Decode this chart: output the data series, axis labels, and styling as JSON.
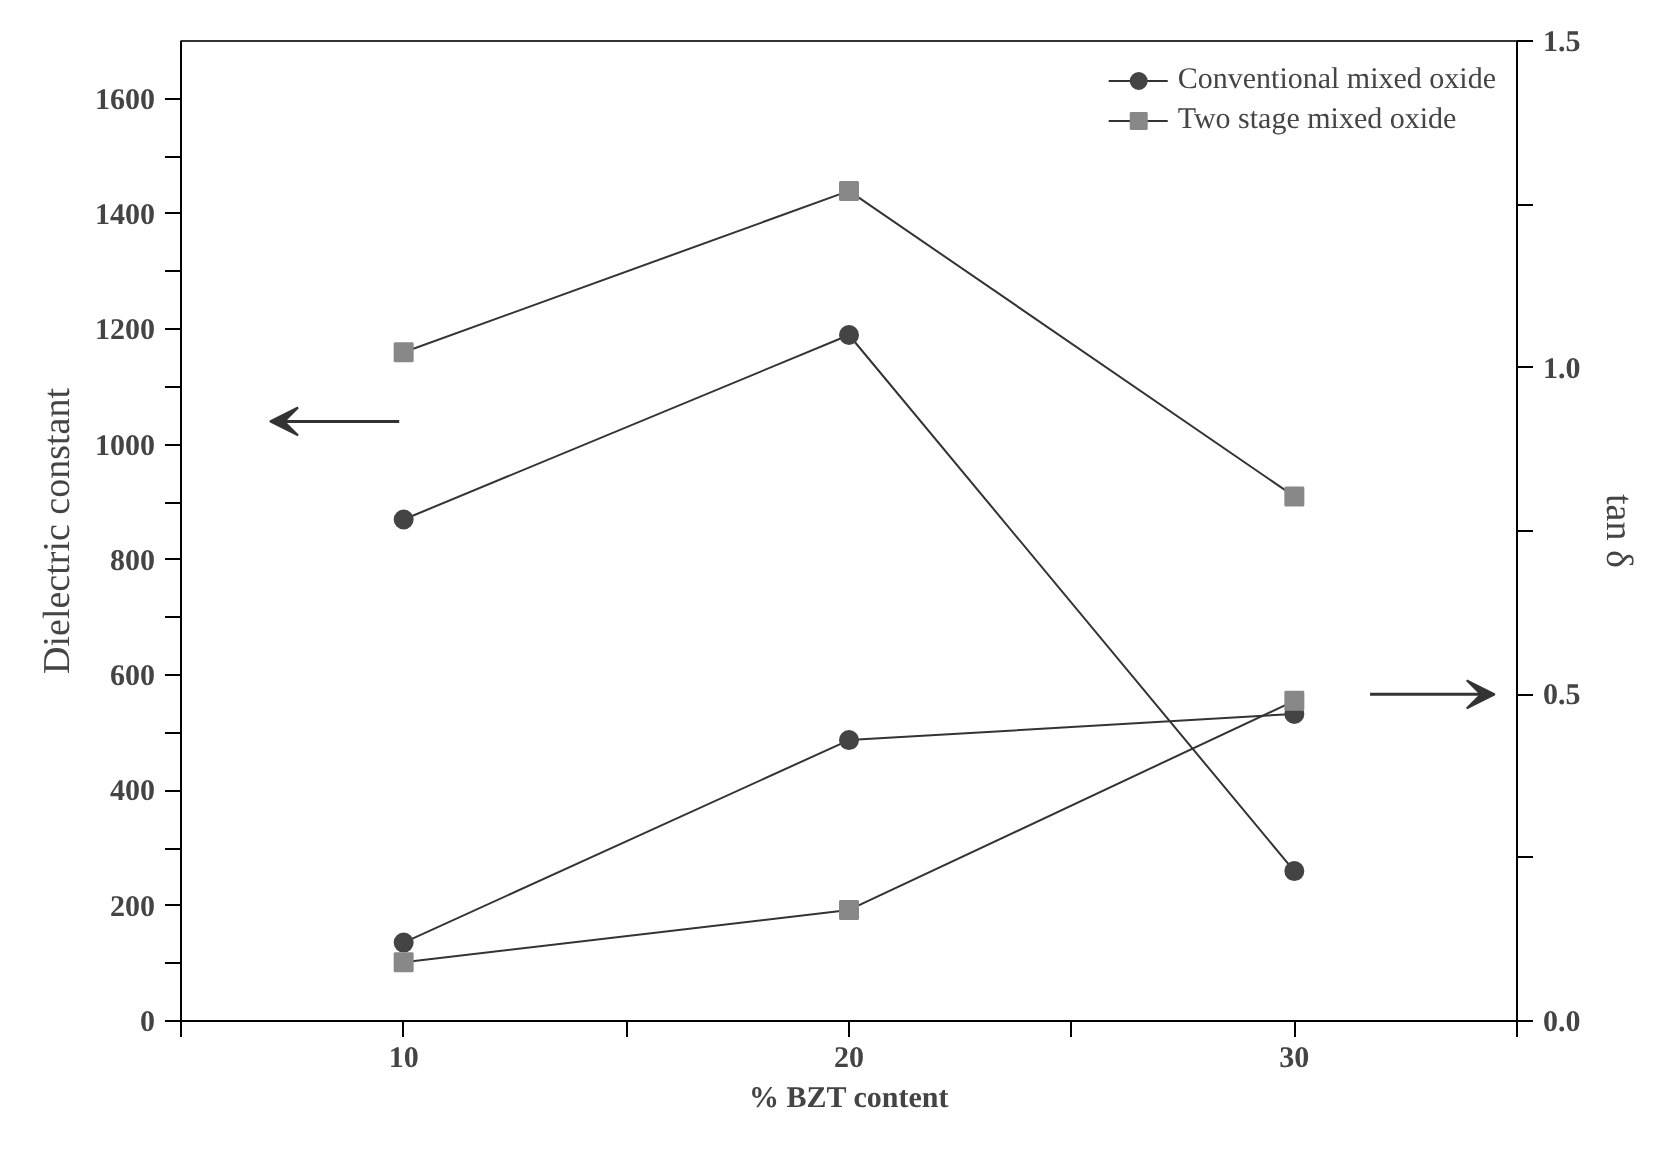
{
  "chart_data": {
    "type": "line",
    "xlabel": "% BZT content",
    "ylabel": "Dielectric constant",
    "y2label": "tan δ",
    "x": [
      10,
      20,
      30
    ],
    "xlim": [
      5,
      35
    ],
    "xticks": [
      {
        "value": 5,
        "label": null
      },
      10,
      {
        "value": 15,
        "label": null
      },
      20,
      {
        "value": 25,
        "label": null
      },
      30,
      {
        "value": 35,
        "label": null
      }
    ],
    "ylim": [
      0,
      1700
    ],
    "yticks": [
      0,
      {
        "value": 100,
        "label": null
      },
      200,
      {
        "value": 300,
        "label": null
      },
      400,
      {
        "value": 500,
        "label": null
      },
      600,
      {
        "value": 700,
        "label": null
      },
      800,
      {
        "value": 900,
        "label": null
      },
      1000,
      {
        "value": 1100,
        "label": null
      },
      1200,
      {
        "value": 1300,
        "label": null
      },
      1400,
      {
        "value": 1500,
        "label": null
      },
      1600
    ],
    "y2lim": [
      0,
      1.5
    ],
    "y2ticks": [
      {
        "value": 0,
        "label": "0.0"
      },
      {
        "value": 0.25,
        "label": null
      },
      {
        "value": 0.5,
        "label": "0.5"
      },
      {
        "value": 0.75,
        "label": null
      },
      {
        "value": 1.0,
        "label": "1.0"
      },
      {
        "value": 1.25,
        "label": null
      },
      {
        "value": 1.5,
        "label": "1.5"
      }
    ],
    "series": [
      {
        "name": "Conventional mixed oxide",
        "color": "#444444",
        "marker": "circle",
        "values": [
          870,
          1190,
          260
        ]
      },
      {
        "name": "Two stage mixed oxide",
        "color": "#888888",
        "marker": "square",
        "values": [
          1160,
          1440,
          910
        ]
      },
      {
        "color": "#444444",
        "marker": "circle",
        "axis": "y2",
        "values": [
          0.12,
          0.43,
          0.47
        ]
      },
      {
        "color": "#888888",
        "marker": "square",
        "axis": "y2",
        "values": [
          0.09,
          0.17,
          0.49
        ]
      }
    ],
    "legend": "top right",
    "grid": false,
    "line_style": "solid"
  }
}
